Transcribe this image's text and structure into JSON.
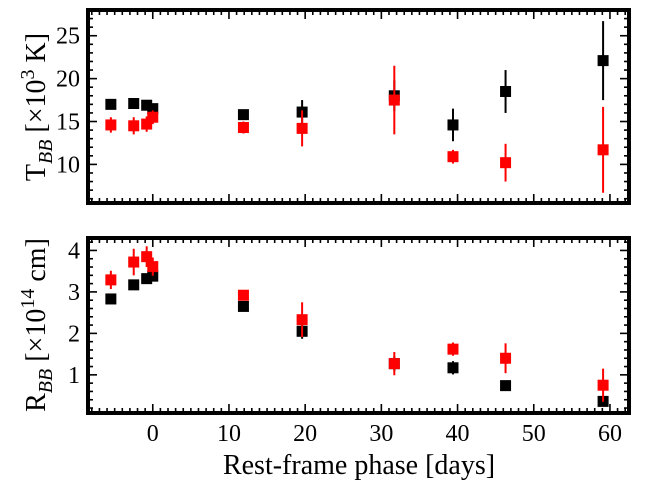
{
  "chart_data": [
    {
      "type": "scatter",
      "ylabel": {
        "main": "T",
        "sub": "BB",
        "bracket": " [×10",
        "sup": "3",
        "unit": " K]"
      },
      "xlim": [
        -8.5,
        62.5
      ],
      "ylim": [
        5.5,
        28
      ],
      "yticks": [
        10,
        15,
        20,
        25
      ],
      "xticks": [
        0,
        10,
        20,
        30,
        40,
        50,
        60
      ],
      "series": [
        {
          "color": "#000000",
          "points": [
            {
              "x": -5.5,
              "y": 17.0,
              "err": 0.6
            },
            {
              "x": -2.5,
              "y": 17.1,
              "err": 0.6
            },
            {
              "x": -0.8,
              "y": 16.9,
              "err": 0.6
            },
            {
              "x": 0.0,
              "y": 16.5,
              "err": 0.6
            },
            {
              "x": 11.9,
              "y": 15.8,
              "err": 0.6
            },
            {
              "x": 19.6,
              "y": 16.1,
              "err": 1.4
            },
            {
              "x": 31.7,
              "y": 18.0,
              "err": 1.8
            },
            {
              "x": 39.4,
              "y": 14.6,
              "err": 1.9
            },
            {
              "x": 46.3,
              "y": 18.5,
              "err": 2.5
            },
            {
              "x": 59.1,
              "y": 22.1,
              "err": 4.6
            }
          ]
        },
        {
          "color": "#ff0000",
          "points": [
            {
              "x": -5.5,
              "y": 14.6,
              "err": 0.9
            },
            {
              "x": -2.5,
              "y": 14.5,
              "err": 1.0
            },
            {
              "x": -0.8,
              "y": 14.7,
              "err": 0.9
            },
            {
              "x": 0.0,
              "y": 15.5,
              "err": 0.8
            },
            {
              "x": 11.9,
              "y": 14.3,
              "err": 0.7
            },
            {
              "x": 19.6,
              "y": 14.2,
              "err": 2.1
            },
            {
              "x": 31.7,
              "y": 17.5,
              "err": 4.0
            },
            {
              "x": 39.4,
              "y": 10.9,
              "err": 0.8
            },
            {
              "x": 46.3,
              "y": 10.2,
              "err": 2.2
            },
            {
              "x": 59.1,
              "y": 11.7,
              "err": 5.0
            }
          ]
        }
      ]
    },
    {
      "type": "scatter",
      "xlabel": "Rest-frame phase [days]",
      "ylabel": {
        "main": "R",
        "sub": "BB",
        "bracket": " [×10",
        "sup": "14",
        "unit": " cm]"
      },
      "xlim": [
        -8.5,
        62.5
      ],
      "ylim": [
        0.08,
        4.3
      ],
      "yticks": [
        1,
        2,
        3,
        4
      ],
      "xticks": [
        0,
        10,
        20,
        30,
        40,
        50,
        60
      ],
      "series": [
        {
          "color": "#000000",
          "points": [
            {
              "x": -5.5,
              "y": 2.83,
              "err": 0.12
            },
            {
              "x": -2.5,
              "y": 3.17,
              "err": 0.12
            },
            {
              "x": -0.8,
              "y": 3.32,
              "err": 0.12
            },
            {
              "x": 0.0,
              "y": 3.38,
              "err": 0.12
            },
            {
              "x": 11.9,
              "y": 2.65,
              "err": 0.1
            },
            {
              "x": 19.6,
              "y": 2.05,
              "err": 0.18
            },
            {
              "x": 31.7,
              "y": 1.27,
              "err": 0.18
            },
            {
              "x": 39.4,
              "y": 1.17,
              "err": 0.16
            },
            {
              "x": 46.3,
              "y": 0.74,
              "err": 0.08
            },
            {
              "x": 59.1,
              "y": 0.36,
              "err": 0.07
            }
          ]
        },
        {
          "color": "#ff0000",
          "points": [
            {
              "x": -5.5,
              "y": 3.29,
              "err": 0.22
            },
            {
              "x": -2.5,
              "y": 3.72,
              "err": 0.32
            },
            {
              "x": -0.8,
              "y": 3.85,
              "err": 0.25
            },
            {
              "x": 0.0,
              "y": 3.61,
              "err": 0.22
            },
            {
              "x": 11.9,
              "y": 2.92,
              "err": 0.12
            },
            {
              "x": 19.6,
              "y": 2.33,
              "err": 0.42
            },
            {
              "x": 31.7,
              "y": 1.27,
              "err": 0.28
            },
            {
              "x": 39.4,
              "y": 1.62,
              "err": 0.16
            },
            {
              "x": 46.3,
              "y": 1.4,
              "err": 0.36
            },
            {
              "x": 59.1,
              "y": 0.75,
              "err": 0.4
            }
          ]
        }
      ]
    }
  ]
}
